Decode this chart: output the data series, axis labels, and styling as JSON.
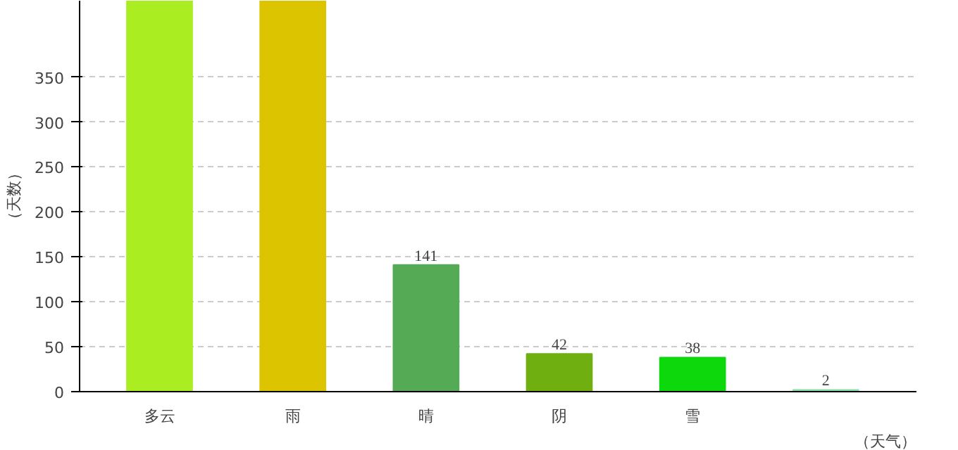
{
  "chart_data": {
    "type": "bar",
    "xlabel": "（天气）",
    "ylabel": "（天数）",
    "categories": [
      "多云",
      "雨",
      "晴",
      "阴",
      "雪",
      null
    ],
    "values": [
      435,
      435,
      141,
      42,
      38,
      2
    ],
    "colors": [
      "#aaee22",
      "#dcc400",
      "#55aa55",
      "#6fb010",
      "#0cd80c",
      "#88ddaa"
    ],
    "value_labels": [
      null,
      null,
      "141",
      "42",
      "38",
      "2"
    ],
    "ylim": [
      0,
      435
    ],
    "yticks": [
      0,
      50,
      100,
      150,
      200,
      250,
      300,
      350
    ],
    "grid": "y"
  }
}
